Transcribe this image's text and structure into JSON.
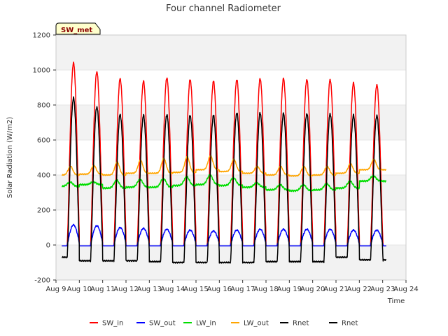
{
  "chart_data": {
    "type": "line",
    "title": "Four channel Radiometer",
    "xlabel": "Time",
    "ylabel": "Solar Radiation (W/m2)",
    "badge": "SW_met",
    "xlim": [
      9,
      24
    ],
    "ylim": [
      -200,
      1200
    ],
    "x_tick_values": [
      9,
      10,
      11,
      12,
      13,
      14,
      15,
      16,
      17,
      18,
      19,
      20,
      21,
      22,
      23,
      24
    ],
    "x_ticks": [
      "Aug 9",
      "Aug 10",
      "Aug 11",
      "Aug 12",
      "Aug 13",
      "Aug 14",
      "Aug 15",
      "Aug 16",
      "Aug 17",
      "Aug 18",
      "Aug 19",
      "Aug 20",
      "Aug 21",
      "Aug 22",
      "Aug 23",
      "Aug 24"
    ],
    "y_ticks": [
      -200,
      0,
      200,
      400,
      600,
      800,
      1000,
      1200
    ],
    "y_tick_labels": [
      "-200",
      "0",
      "200",
      "400",
      "600",
      "800",
      "1000",
      "1200"
    ],
    "bands": [
      [
        -200,
        0
      ],
      [
        200,
        400
      ],
      [
        600,
        800
      ],
      [
        1000,
        1200
      ]
    ],
    "series": [
      {
        "name": "SW_in",
        "color": "#ff0000",
        "kind": "sw_in",
        "days": [
          9.75,
          10.75,
          11.75,
          12.75,
          13.75,
          14.75,
          15.75,
          16.75,
          17.75,
          18.75,
          19.75,
          20.75,
          21.75,
          22.75
        ],
        "peaks": [
          1040,
          990,
          950,
          935,
          955,
          945,
          935,
          945,
          950,
          950,
          945,
          945,
          925,
          915
        ],
        "night": -5
      },
      {
        "name": "SW_out",
        "color": "#0000ff",
        "kind": "sw_out",
        "days": [
          9.75,
          10.75,
          11.75,
          12.75,
          13.75,
          14.75,
          15.75,
          16.75,
          17.75,
          18.75,
          19.75,
          20.75,
          21.75,
          22.75
        ],
        "peaks": [
          115,
          110,
          100,
          95,
          90,
          85,
          80,
          85,
          90,
          90,
          90,
          90,
          85,
          85
        ],
        "night": -5
      },
      {
        "name": "LW_in",
        "color": "#00dd00",
        "kind": "lw_in",
        "days": [
          9.75,
          10.75,
          11.75,
          12.75,
          13.75,
          14.75,
          15.75,
          16.75,
          17.75,
          18.75,
          19.75,
          20.75,
          21.75,
          22.75
        ],
        "base": [
          335,
          345,
          325,
          330,
          330,
          340,
          345,
          340,
          330,
          315,
          310,
          315,
          325,
          365
        ],
        "bump": [
          25,
          15,
          45,
          45,
          50,
          50,
          55,
          45,
          25,
          30,
          35,
          35,
          40,
          30
        ]
      },
      {
        "name": "LW_out",
        "color": "#ffa500",
        "kind": "lw_out",
        "days": [
          9.75,
          10.75,
          11.75,
          12.75,
          13.75,
          14.75,
          15.75,
          16.75,
          17.75,
          18.75,
          19.75,
          20.75,
          21.75,
          22.75
        ],
        "base": [
          400,
          405,
          400,
          410,
          410,
          415,
          430,
          420,
          410,
          400,
          395,
          400,
          410,
          430
        ],
        "bump": [
          50,
          50,
          75,
          75,
          85,
          90,
          80,
          70,
          40,
          50,
          55,
          50,
          55,
          60
        ]
      },
      {
        "name": "Rnet",
        "color": "#000000",
        "kind": "rnet",
        "days": [
          9.75,
          10.75,
          11.75,
          12.75,
          13.75,
          14.75,
          15.75,
          16.75,
          17.75,
          18.75,
          19.75,
          20.75,
          21.75,
          22.75
        ],
        "peaks": [
          840,
          790,
          745,
          740,
          745,
          740,
          740,
          755,
          755,
          750,
          750,
          750,
          740,
          740
        ],
        "troughs": [
          -70,
          -90,
          -90,
          -90,
          -95,
          -100,
          -100,
          -100,
          -100,
          -95,
          -95,
          -95,
          -70,
          -85
        ]
      },
      {
        "name": "Rnet",
        "color": "#000000",
        "kind": "legend_only"
      }
    ]
  }
}
